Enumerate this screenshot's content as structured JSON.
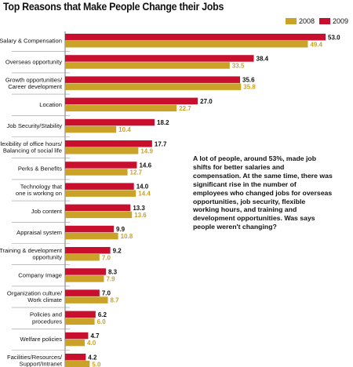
{
  "colors": {
    "y2008": "#c9a227",
    "y2009": "#c8102e"
  },
  "annotation": "A lot of people, around 53%, made job shifts for better salaries and compensation. At the same time, there was significant rise in the number of employees who changed jobs for overseas opportunities, job security, flexible working hours, and training and development opportunities. Was says people weren't changing?",
  "chart_data": {
    "type": "bar",
    "orientation": "horizontal",
    "title": "Top Reasons that Make People Change their Jobs",
    "categories": [
      [
        "Salary & Compensation"
      ],
      [
        "Overseas opportunity"
      ],
      [
        "Growth opportunities/",
        "Career development"
      ],
      [
        "Location"
      ],
      [
        "Job Security/Stability"
      ],
      [
        "Flexibility of office hours/",
        "Balancing of social life"
      ],
      [
        "Perks & Benefits"
      ],
      [
        "Technology that",
        "one is working on"
      ],
      [
        "Job content"
      ],
      [
        "Appraisal system"
      ],
      [
        "Training & development",
        "opportunity"
      ],
      [
        "Company Image"
      ],
      [
        "Organization culture/",
        "Work climate"
      ],
      [
        "Policies and",
        "procedures"
      ],
      [
        "Welfare policies"
      ],
      [
        "Facilities/Resources/",
        "Support/Intranet"
      ]
    ],
    "series": [
      {
        "name": "2009",
        "values": [
          53.0,
          38.4,
          35.6,
          27.0,
          18.2,
          17.7,
          14.6,
          14.0,
          13.3,
          9.9,
          9.2,
          8.3,
          7.0,
          6.2,
          4.7,
          4.2
        ]
      },
      {
        "name": "2008",
        "values": [
          49.4,
          33.5,
          35.8,
          22.7,
          10.4,
          14.9,
          12.7,
          14.4,
          13.6,
          10.8,
          7.0,
          7.9,
          8.7,
          6.0,
          4.0,
          5.0
        ]
      }
    ],
    "legend_order": [
      "2008",
      "2009"
    ],
    "legend": "top-right",
    "xlim": [
      0,
      55
    ],
    "grid": false
  }
}
